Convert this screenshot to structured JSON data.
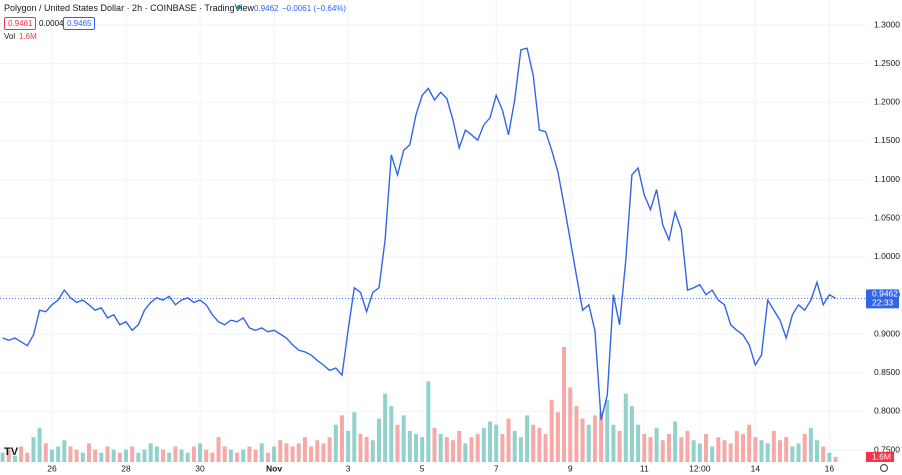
{
  "header": {
    "title": "Polygon / United States Dollar · 2h · COINBASE · TradingView",
    "price": "0.9462",
    "change": "−0.0061 (−0.64%)",
    "bid": "0.9461",
    "spread": "0.0004",
    "ask": "0.9465",
    "vol_label": "Vol",
    "vol": "1.6M",
    "countdown": "22:33"
  },
  "chart_data": {
    "type": "line",
    "color": "#3366e6",
    "categories": [
      null,
      null,
      null,
      null,
      null,
      null,
      null,
      null,
      "26",
      null,
      null,
      null,
      null,
      null,
      null,
      null,
      null,
      null,
      null,
      null,
      "28",
      null,
      null,
      null,
      null,
      null,
      null,
      null,
      null,
      null,
      null,
      null,
      "30",
      null,
      null,
      null,
      null,
      null,
      null,
      null,
      null,
      null,
      null,
      null,
      "Nov",
      null,
      null,
      null,
      null,
      null,
      null,
      null,
      null,
      null,
      null,
      null,
      "3",
      null,
      null,
      null,
      null,
      null,
      null,
      null,
      null,
      null,
      null,
      null,
      "5",
      null,
      null,
      null,
      null,
      null,
      null,
      null,
      null,
      null,
      null,
      null,
      "7",
      null,
      null,
      null,
      null,
      null,
      null,
      null,
      null,
      null,
      null,
      null,
      "9",
      null,
      null,
      null,
      null,
      null,
      null,
      null,
      null,
      null,
      null,
      null,
      "11",
      null,
      null,
      null,
      null,
      null,
      null,
      null,
      null,
      "12:00",
      null,
      null,
      null,
      null,
      null,
      null,
      null,
      null,
      "14",
      null,
      null,
      null,
      null,
      null,
      null,
      null,
      null,
      null,
      null,
      null,
      "16",
      null
    ],
    "values": [
      0.895,
      0.892,
      0.895,
      0.89,
      0.885,
      0.899,
      0.931,
      0.929,
      0.938,
      0.944,
      0.957,
      0.947,
      0.941,
      0.944,
      0.938,
      0.931,
      0.934,
      0.921,
      0.925,
      0.912,
      0.916,
      0.905,
      0.912,
      0.931,
      0.941,
      0.947,
      0.944,
      0.949,
      0.938,
      0.944,
      0.947,
      0.941,
      0.944,
      0.938,
      0.925,
      0.916,
      0.912,
      0.918,
      0.916,
      0.921,
      0.908,
      0.905,
      0.908,
      0.903,
      0.905,
      0.9,
      0.895,
      0.886,
      0.879,
      0.877,
      0.873,
      0.866,
      0.86,
      0.853,
      0.856,
      0.847,
      0.905,
      0.96,
      0.954,
      0.929,
      0.954,
      0.96,
      1.022,
      1.132,
      1.106,
      1.138,
      1.145,
      1.184,
      1.209,
      1.218,
      1.203,
      1.213,
      1.205,
      1.177,
      1.141,
      1.164,
      1.158,
      1.151,
      1.171,
      1.18,
      1.209,
      1.19,
      1.158,
      1.203,
      1.268,
      1.27,
      1.235,
      1.164,
      1.162,
      1.138,
      1.11,
      1.067,
      1.022,
      0.976,
      0.931,
      0.938,
      0.905,
      0.789,
      0.821,
      0.951,
      0.912,
      0.996,
      1.106,
      1.115,
      1.08,
      1.061,
      1.087,
      1.041,
      1.022,
      1.058,
      1.035,
      0.957,
      0.96,
      0.964,
      0.951,
      0.957,
      0.944,
      0.938,
      0.912,
      0.905,
      0.899,
      0.886,
      0.86,
      0.873,
      0.944,
      0.931,
      0.918,
      0.895,
      0.925,
      0.938,
      0.931,
      0.944,
      0.967,
      0.938,
      0.951,
      0.9462
    ],
    "volume": {
      "up_color": "#92d2cc",
      "down_color": "#f7a9a7",
      "values": [
        3,
        4,
        2,
        5,
        3,
        8,
        11,
        6,
        4,
        5,
        7,
        5,
        4,
        3,
        6,
        4,
        3,
        5,
        4,
        3,
        4,
        5,
        3,
        4,
        6,
        5,
        4,
        3,
        5,
        4,
        3,
        5,
        6,
        4,
        3,
        8,
        5,
        4,
        3,
        4,
        5,
        4,
        6,
        3,
        5,
        7,
        6,
        5,
        6,
        8,
        5,
        7,
        6,
        8,
        12,
        15,
        10,
        16,
        9,
        8,
        7,
        14,
        22,
        18,
        12,
        15,
        10,
        9,
        8,
        26,
        11,
        9,
        8,
        7,
        10,
        6,
        8,
        9,
        11,
        13,
        12,
        9,
        14,
        10,
        8,
        15,
        12,
        11,
        9,
        20,
        16,
        37,
        24,
        18,
        14,
        12,
        15,
        16,
        20,
        12,
        10,
        22,
        18,
        12,
        9,
        8,
        11,
        7,
        9,
        13,
        8,
        10,
        7,
        6,
        9,
        5,
        8,
        7,
        6,
        10,
        9,
        12,
        8,
        7,
        6,
        10,
        7,
        8,
        5,
        6,
        9,
        11,
        7,
        5,
        3,
        1.6
      ]
    },
    "ylim": [
      0.7345,
      1.3324
    ],
    "yticks": [
      {
        "value": 1.3,
        "label": "1.3000"
      },
      {
        "value": 1.25,
        "label": "1.2500"
      },
      {
        "value": 1.2,
        "label": "1.2000"
      },
      {
        "value": 1.15,
        "label": "1.1500"
      },
      {
        "value": 1.1,
        "label": "1.1000"
      },
      {
        "value": 1.05,
        "label": "1.0500"
      },
      {
        "value": 1.0,
        "label": "1.0000"
      },
      {
        "value": 0.95,
        "label": "0.9500"
      },
      {
        "value": 0.9,
        "label": "0.9000"
      },
      {
        "value": 0.85,
        "label": "0.8500"
      },
      {
        "value": 0.8,
        "label": "0.8000"
      },
      {
        "value": 0.75,
        "label": "0.7500"
      }
    ],
    "grid": true
  }
}
